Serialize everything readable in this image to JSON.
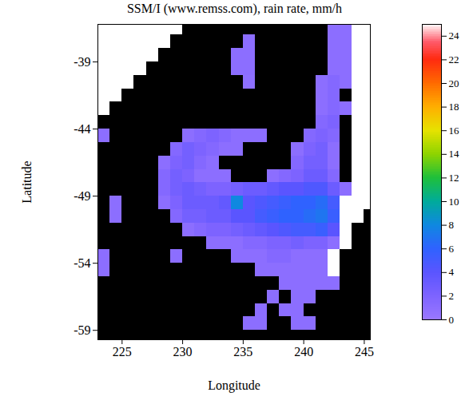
{
  "chart_data": {
    "type": "heatmap",
    "title": "SSM/I (www.remss.com), rain rate, mm/h",
    "x_label": "Longitude",
    "y_label": "Latitude",
    "xlim": [
      223,
      245.5
    ],
    "ylim": [
      -59.7,
      -36.2
    ],
    "xticks": [
      225,
      230,
      235,
      240,
      245
    ],
    "yticks": [
      -59,
      -54,
      -49,
      -44,
      -39
    ],
    "x": [
      223.5,
      224.5,
      225.5,
      226.5,
      227.5,
      228.5,
      229.5,
      230.5,
      231.5,
      232.5,
      233.5,
      234.5,
      235.5,
      236.5,
      237.5,
      238.5,
      239.5,
      240.5,
      241.5,
      242.5,
      243.5,
      244.5,
      245.5
    ],
    "y": [
      -36.5,
      -37.5,
      -38.5,
      -39.5,
      -40.5,
      -41.5,
      -42.5,
      -43.5,
      -44.5,
      -45.5,
      -46.5,
      -47.5,
      -48.5,
      -49.5,
      -50.5,
      -51.5,
      -52.5,
      -53.5,
      -54.5,
      -55.5,
      -56.5,
      -57.5,
      -58.5,
      -59.5
    ],
    "values": [
      [
        null,
        null,
        null,
        null,
        null,
        null,
        null,
        0,
        0,
        0,
        0,
        0,
        0,
        0,
        0,
        0,
        0,
        0,
        0,
        1,
        1,
        null,
        null
      ],
      [
        null,
        null,
        null,
        null,
        null,
        null,
        0,
        0,
        0,
        0,
        0,
        0,
        1,
        0,
        0,
        0,
        0,
        0,
        0,
        1,
        1,
        null,
        null
      ],
      [
        null,
        null,
        null,
        null,
        null,
        0,
        0,
        0,
        0,
        0,
        0,
        1,
        1,
        0,
        0,
        0,
        0,
        0,
        0,
        1,
        1,
        null,
        null
      ],
      [
        null,
        null,
        null,
        null,
        0,
        0,
        0,
        0,
        0,
        0,
        0,
        1,
        1,
        0,
        0,
        0,
        0,
        0,
        0,
        1,
        1,
        null,
        null
      ],
      [
        null,
        null,
        null,
        0,
        0,
        0,
        0,
        0,
        0,
        0,
        0,
        0,
        0.8,
        0,
        0,
        0,
        0,
        0,
        1,
        1.5,
        1,
        null,
        null
      ],
      [
        null,
        null,
        0,
        0,
        0,
        0,
        0,
        0,
        0,
        0,
        0,
        0,
        0,
        0,
        0,
        0,
        0,
        0,
        1,
        1.5,
        0,
        null,
        null
      ],
      [
        null,
        0,
        0,
        0,
        0,
        0,
        0,
        0,
        0,
        0,
        0,
        0,
        0,
        0,
        0,
        0,
        0,
        0,
        1,
        1.5,
        1,
        null,
        null
      ],
      [
        0,
        0,
        0,
        0,
        0,
        0,
        0,
        0,
        0,
        0,
        0,
        0,
        0,
        0,
        0,
        0,
        0,
        0,
        1.5,
        2,
        0,
        null,
        null
      ],
      [
        1,
        0,
        0,
        0,
        0,
        0,
        0,
        1,
        1.5,
        2,
        1.5,
        1,
        1,
        1,
        0,
        0,
        0,
        1.5,
        2,
        1.5,
        0,
        null,
        null
      ],
      [
        0,
        0,
        0,
        0,
        0,
        0,
        1.5,
        2.5,
        2,
        1.5,
        1,
        1,
        0,
        0,
        0,
        0,
        1,
        2,
        2.5,
        1,
        0,
        null,
        null
      ],
      [
        0,
        0,
        0,
        0,
        0,
        1,
        2,
        2.5,
        1.5,
        1,
        0,
        0,
        0,
        0,
        0,
        0,
        1.5,
        2.5,
        2.5,
        1,
        0,
        null,
        null
      ],
      [
        0,
        0,
        0,
        0,
        0,
        1.5,
        2.5,
        2,
        1,
        1,
        1,
        0,
        0,
        0,
        1,
        1.5,
        2,
        3,
        3,
        1.5,
        0,
        null,
        null
      ],
      [
        0,
        0,
        0,
        0,
        0,
        1.5,
        2.5,
        3,
        2.5,
        2,
        2,
        2.5,
        3,
        3,
        3.5,
        4,
        4,
        4.5,
        4.5,
        3,
        1,
        null,
        null
      ],
      [
        0,
        1,
        0,
        0,
        0,
        1,
        2,
        3,
        3,
        3,
        3.5,
        8,
        4,
        4.5,
        5,
        5.5,
        6,
        6,
        6.5,
        5,
        null,
        null,
        null
      ],
      [
        0,
        1,
        0,
        0,
        0,
        0,
        1.5,
        2.5,
        2.5,
        3,
        3,
        4,
        4,
        5,
        5.5,
        6,
        6,
        6.5,
        7,
        5.5,
        null,
        null,
        0
      ],
      [
        0,
        0,
        0,
        0,
        0,
        0,
        0,
        1,
        1.5,
        2,
        2,
        2.5,
        3,
        3.5,
        4,
        4.5,
        5,
        5,
        5.5,
        4,
        null,
        0,
        0
      ],
      [
        0,
        0,
        0,
        0,
        0,
        0,
        0,
        0,
        0,
        1,
        1,
        1,
        1.5,
        1.5,
        2,
        2,
        2.5,
        2,
        2,
        1,
        null,
        0,
        0
      ],
      [
        1,
        0,
        0,
        0,
        0,
        0,
        1,
        0,
        0,
        0,
        0,
        1,
        1,
        1,
        1.5,
        1.5,
        1,
        1,
        1,
        null,
        0,
        0,
        0
      ],
      [
        1,
        0,
        0,
        0,
        0,
        0,
        0,
        0,
        0,
        0,
        0,
        0,
        0,
        1,
        1,
        1,
        1,
        1,
        1,
        null,
        0,
        0,
        0
      ],
      [
        0,
        0,
        0,
        0,
        0,
        0,
        0,
        0,
        0,
        0,
        0,
        0,
        0,
        0,
        0,
        1,
        1,
        1,
        1,
        1,
        0,
        0,
        0
      ],
      [
        0,
        0,
        0,
        0,
        0,
        0,
        0,
        0,
        0,
        0,
        0,
        0,
        0,
        0,
        1,
        0,
        1,
        1,
        0,
        0,
        0,
        0,
        0
      ],
      [
        0,
        0,
        0,
        0,
        0,
        0,
        0,
        0,
        0,
        0,
        0,
        0,
        0,
        1,
        0,
        1,
        1,
        0,
        0,
        0,
        0,
        0,
        0
      ],
      [
        0,
        0,
        0,
        0,
        0,
        0,
        0,
        0,
        0,
        0,
        0,
        0,
        1,
        1,
        0,
        0,
        1,
        1,
        0,
        0,
        0,
        0,
        0
      ],
      [
        0,
        0,
        0,
        0,
        0,
        0,
        0,
        0,
        0,
        0,
        0,
        0,
        0,
        0,
        0,
        0,
        0,
        0,
        0,
        0,
        0,
        0,
        0
      ]
    ],
    "colorbar": {
      "lim": [
        0,
        25
      ],
      "ticks": [
        0,
        2,
        4,
        6,
        8,
        10,
        12,
        14,
        16,
        18,
        20,
        22,
        24
      ]
    }
  }
}
